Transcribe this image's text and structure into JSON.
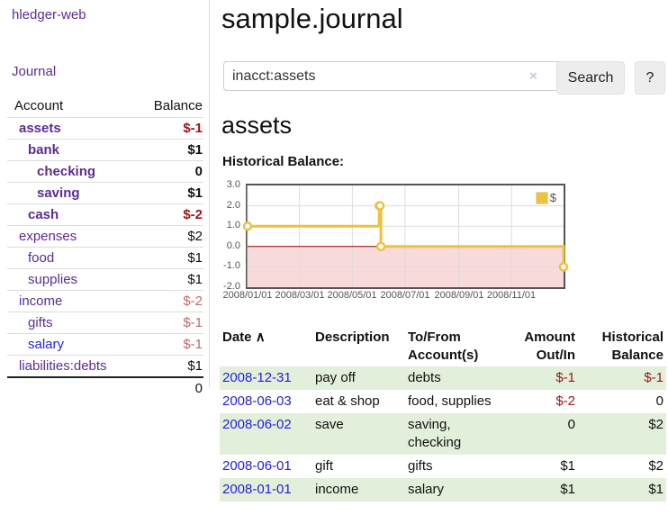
{
  "sidebar": {
    "brand": "hledger-web",
    "nav": {
      "journal": "Journal"
    },
    "table": {
      "header": {
        "account": "Account",
        "balance": "Balance"
      },
      "rows": [
        {
          "name": "assets",
          "balance": "$-1"
        },
        {
          "name": "bank",
          "balance": "$1"
        },
        {
          "name": "checking",
          "balance": "0"
        },
        {
          "name": "saving",
          "balance": "$1"
        },
        {
          "name": "cash",
          "balance": "$-2"
        },
        {
          "name": "expenses",
          "balance": "$2"
        },
        {
          "name": "food",
          "balance": "$1"
        },
        {
          "name": "supplies",
          "balance": "$1"
        },
        {
          "name": "income",
          "balance": "$-2"
        },
        {
          "name": "gifts",
          "balance": "$-1"
        },
        {
          "name": "salary",
          "balance": "$-1"
        },
        {
          "name": "liabilities:debts",
          "balance": "$1"
        }
      ],
      "total": "0"
    }
  },
  "main": {
    "title": "sample.journal",
    "search": {
      "value": "inacct:assets",
      "clear_icon": "×",
      "search_label": "Search",
      "help_label": "?"
    },
    "account_heading": "assets",
    "chart_label": "Historical Balance:"
  },
  "chart_data": {
    "type": "line",
    "title": "Historical Balance",
    "x_start": "2008-01-01",
    "x_end": "2008-12-31",
    "ylim": [
      -2,
      3
    ],
    "y_ticks": [
      "3.0",
      "2.0",
      "1.0",
      "0.0",
      "-1.0",
      "-2.0"
    ],
    "x_ticks": [
      "2008/01/01",
      "2008/03/01",
      "2008/05/01",
      "2008/07/01",
      "2008/09/01",
      "2008/11/01"
    ],
    "series": [
      {
        "name": "$",
        "color": "#edc240",
        "step": true,
        "points": [
          [
            "2008-01-01",
            1
          ],
          [
            "2008-06-01",
            2
          ],
          [
            "2008-06-02",
            2
          ],
          [
            "2008-06-03",
            0
          ],
          [
            "2008-12-31",
            -1
          ]
        ]
      }
    ],
    "negative_region": {
      "below": 0,
      "fill": "#f9dada",
      "zero_line": "#8b0000"
    },
    "legend": {
      "label": "$",
      "position": "top-right"
    },
    "grid": true
  },
  "register": {
    "header": {
      "date": "Date",
      "sort_icon": "∧",
      "description": "Description",
      "tofrom": "To/From Account(s)",
      "amount": "Amount Out/In",
      "balance": "Historical Balance"
    },
    "rows": [
      {
        "date": "2008-12-31",
        "description": "pay off",
        "accounts": "debts",
        "amount": "$-1",
        "balance": "$-1"
      },
      {
        "date": "2008-06-03",
        "description": "eat & shop",
        "accounts": "food, supplies",
        "amount": "$-2",
        "balance": "0"
      },
      {
        "date": "2008-06-02",
        "description": "save",
        "accounts": "saving, checking",
        "amount": "0",
        "balance": "$2"
      },
      {
        "date": "2008-06-01",
        "description": "gift",
        "accounts": "gifts",
        "amount": "$1",
        "balance": "$2"
      },
      {
        "date": "2008-01-01",
        "description": "income",
        "accounts": "salary",
        "amount": "$1",
        "balance": "$1"
      }
    ]
  },
  "colors": {
    "purple_link": "#5c2d91",
    "blue_link": "#2222dd",
    "negative_strong": "#a01515",
    "negative_soft": "#bf6a6a",
    "row_green": "#e2efdb",
    "chart_line": "#edc240",
    "chart_negative_fill": "#f9dada",
    "chart_zero_line": "#8b0000",
    "chart_grid": "#dcdcdc",
    "chart_border": "#545454",
    "chart_tick_text": "#545454"
  }
}
